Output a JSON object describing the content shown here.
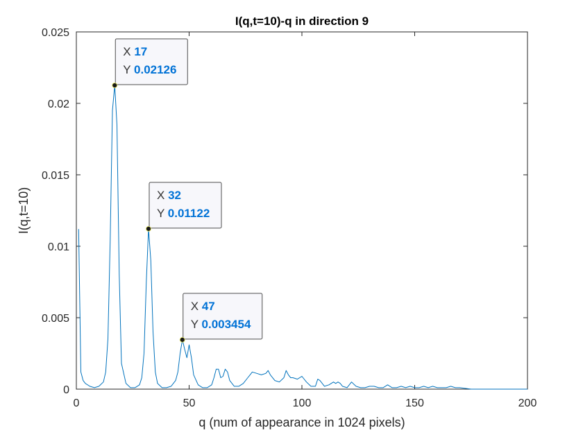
{
  "chart_data": {
    "type": "line",
    "title": "I(q,t=10)-q in direction 9",
    "xlabel": "q (num of appearance in 1024 pixels)",
    "ylabel": "I(q,t=10)",
    "xlim": [
      0,
      200
    ],
    "ylim": [
      0,
      0.025
    ],
    "x_ticks": [
      0,
      50,
      100,
      150,
      200
    ],
    "x_tick_labels": [
      "0",
      "50",
      "100",
      "150",
      "200"
    ],
    "y_ticks": [
      0,
      0.005,
      0.01,
      0.015,
      0.02,
      0.025
    ],
    "y_tick_labels": [
      "0",
      "0.005",
      "0.01",
      "0.015",
      "0.02",
      "0.025"
    ],
    "grid": false,
    "line_color": "#0072BD",
    "series": [
      {
        "x": [
          1,
          2,
          3,
          4,
          6,
          8,
          10,
          12,
          13,
          14,
          15,
          16,
          17,
          18,
          19,
          20,
          22,
          24,
          26,
          28,
          29,
          30,
          31,
          32,
          33,
          34,
          35,
          36,
          38,
          40,
          42,
          44,
          45,
          46,
          47,
          48,
          49,
          50,
          51,
          52,
          54,
          56,
          58,
          60,
          61,
          62,
          63,
          64,
          65,
          66,
          67,
          68,
          70,
          72,
          74,
          76,
          77,
          78,
          80,
          82,
          84,
          85,
          86,
          88,
          90,
          92,
          93,
          94,
          95,
          96,
          98,
          100,
          102,
          104,
          106,
          107,
          108,
          110,
          112,
          114,
          115,
          116,
          117,
          118,
          120,
          122,
          124,
          126,
          128,
          130,
          132,
          134,
          136,
          138,
          140,
          142,
          144,
          146,
          148,
          150,
          152,
          154,
          156,
          158,
          160,
          162,
          164,
          166,
          168,
          170,
          175,
          180,
          190,
          200
        ],
        "y": [
          0.0112,
          0.0012,
          0.0006,
          0.0004,
          0.0002,
          0.0001,
          0.0002,
          0.0005,
          0.0012,
          0.0035,
          0.0105,
          0.0195,
          0.02126,
          0.0185,
          0.008,
          0.0018,
          0.0004,
          0.0001,
          0.0001,
          0.0003,
          0.0008,
          0.0025,
          0.0075,
          0.01122,
          0.009,
          0.004,
          0.0012,
          0.0004,
          0.0001,
          0.0001,
          0.0002,
          0.0006,
          0.0012,
          0.0025,
          0.003454,
          0.0028,
          0.0022,
          0.0031,
          0.0022,
          0.001,
          0.0003,
          0.0001,
          0.0001,
          0.0003,
          0.0008,
          0.0014,
          0.0014,
          0.0008,
          0.0009,
          0.0014,
          0.0012,
          0.0006,
          0.0002,
          0.0002,
          0.0004,
          0.0008,
          0.001,
          0.0012,
          0.0011,
          0.001,
          0.0011,
          0.0013,
          0.001,
          0.0006,
          0.0005,
          0.0008,
          0.0013,
          0.001,
          0.0008,
          0.0008,
          0.0007,
          0.0009,
          0.0005,
          0.0002,
          0.0002,
          0.0007,
          0.0006,
          0.0002,
          0.0003,
          0.0005,
          0.0004,
          0.0005,
          0.0004,
          0.0002,
          0.0001,
          0.0005,
          0.0002,
          0.0001,
          0.0001,
          0.0002,
          0.0002,
          0.0001,
          0.0001,
          0.0003,
          0.0001,
          0.0001,
          0.0002,
          0.0001,
          0.0002,
          0.0001,
          0.0001,
          0.0002,
          0.0001,
          0.0002,
          0.0001,
          0.0001,
          0.0001,
          0.0002,
          0.0001,
          0.0001,
          0.0,
          0.0,
          0.0,
          0.0
        ]
      }
    ],
    "annotations": [
      {
        "x_key": "X",
        "x_value": "17",
        "y_key": "Y",
        "y_value": "0.02126",
        "x": 17,
        "y": 0.02126
      },
      {
        "x_key": "X",
        "x_value": "32",
        "y_key": "Y",
        "y_value": "0.01122",
        "x": 32,
        "y": 0.01122
      },
      {
        "x_key": "X",
        "x_value": "47",
        "y_key": "Y",
        "y_value": "0.003454",
        "x": 47,
        "y": 0.003454
      }
    ]
  }
}
